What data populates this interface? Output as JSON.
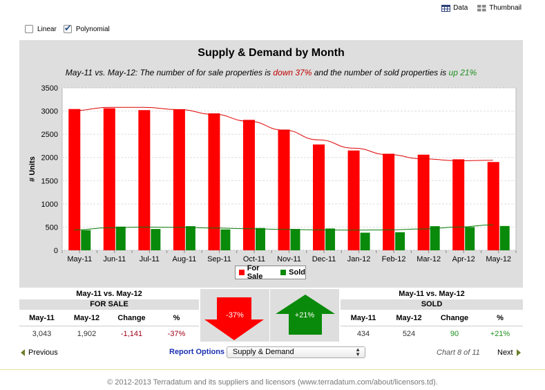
{
  "topbar": {
    "data_label": "Data",
    "thumbnail_label": "Thumbnail"
  },
  "options": {
    "linear_label": "Linear",
    "linear_checked": false,
    "polynomial_label": "Polynomial",
    "polynomial_checked": true
  },
  "chart": {
    "title": "Supply & Demand by Month",
    "subtitle_prefix": "May-11 vs. May-12: The number of for sale properties is ",
    "subtitle_down": "down 37%",
    "subtitle_mid": " and the number of sold properties is ",
    "subtitle_up": "up 21%"
  },
  "chart_data": {
    "type": "bar",
    "categories": [
      "May-11",
      "Jun-11",
      "Jul-11",
      "Aug-11",
      "Sep-11",
      "Oct-11",
      "Nov-11",
      "Dec-11",
      "Jan-12",
      "Feb-12",
      "Mar-12",
      "Apr-12",
      "May-12"
    ],
    "series": [
      {
        "name": "For Sale",
        "color": "#ff0000",
        "values": [
          3043,
          3060,
          3020,
          3040,
          2950,
          2810,
          2600,
          2280,
          2150,
          2080,
          2060,
          1960,
          1902
        ]
      },
      {
        "name": "Sold",
        "color": "#0a8a0a",
        "values": [
          434,
          510,
          460,
          520,
          450,
          480,
          460,
          470,
          380,
          390,
          520,
          500,
          524
        ]
      }
    ],
    "trendlines": [
      {
        "series": "For Sale",
        "type": "polynomial",
        "values": [
          3010,
          3080,
          3080,
          3030,
          2930,
          2780,
          2590,
          2380,
          2200,
          2060,
          1970,
          1930,
          1940
        ]
      },
      {
        "series": "Sold",
        "type": "polynomial",
        "values": [
          440,
          485,
          500,
          495,
          480,
          465,
          450,
          440,
          435,
          440,
          460,
          500,
          550
        ]
      }
    ],
    "ylabel": "# Units",
    "ylim": [
      0,
      3500
    ],
    "yticks": [
      0,
      500,
      1000,
      1500,
      2000,
      2500,
      3000,
      3500
    ],
    "grid": true,
    "legend": "bottom-center"
  },
  "legend": {
    "for_sale": "For Sale",
    "sold": "Sold"
  },
  "for_sale_table": {
    "header": "May-11 vs. May-12",
    "subheader": "FOR SALE",
    "columns": [
      "May-11",
      "May-12",
      "Change",
      "%"
    ],
    "values": [
      "3,043",
      "1,902",
      "-1,141",
      "-37%"
    ]
  },
  "sold_table": {
    "header": "May-11 vs. May-12",
    "subheader": "SOLD",
    "columns": [
      "May-11",
      "May-12",
      "Change",
      "%"
    ],
    "values": [
      "434",
      "524",
      "90",
      "+21%"
    ]
  },
  "arrows": {
    "down_label": "-37%",
    "up_label": "+21%"
  },
  "nav": {
    "previous": "Previous",
    "report_options": "Report Options",
    "selected_report": "Supply & Demand",
    "chart_counter": "Chart 8 of 11",
    "next": "Next"
  },
  "footer": {
    "text": "© 2012-2013 Terradatum and its suppliers and licensors (www.terradatum.com/about/licensors.td)."
  }
}
